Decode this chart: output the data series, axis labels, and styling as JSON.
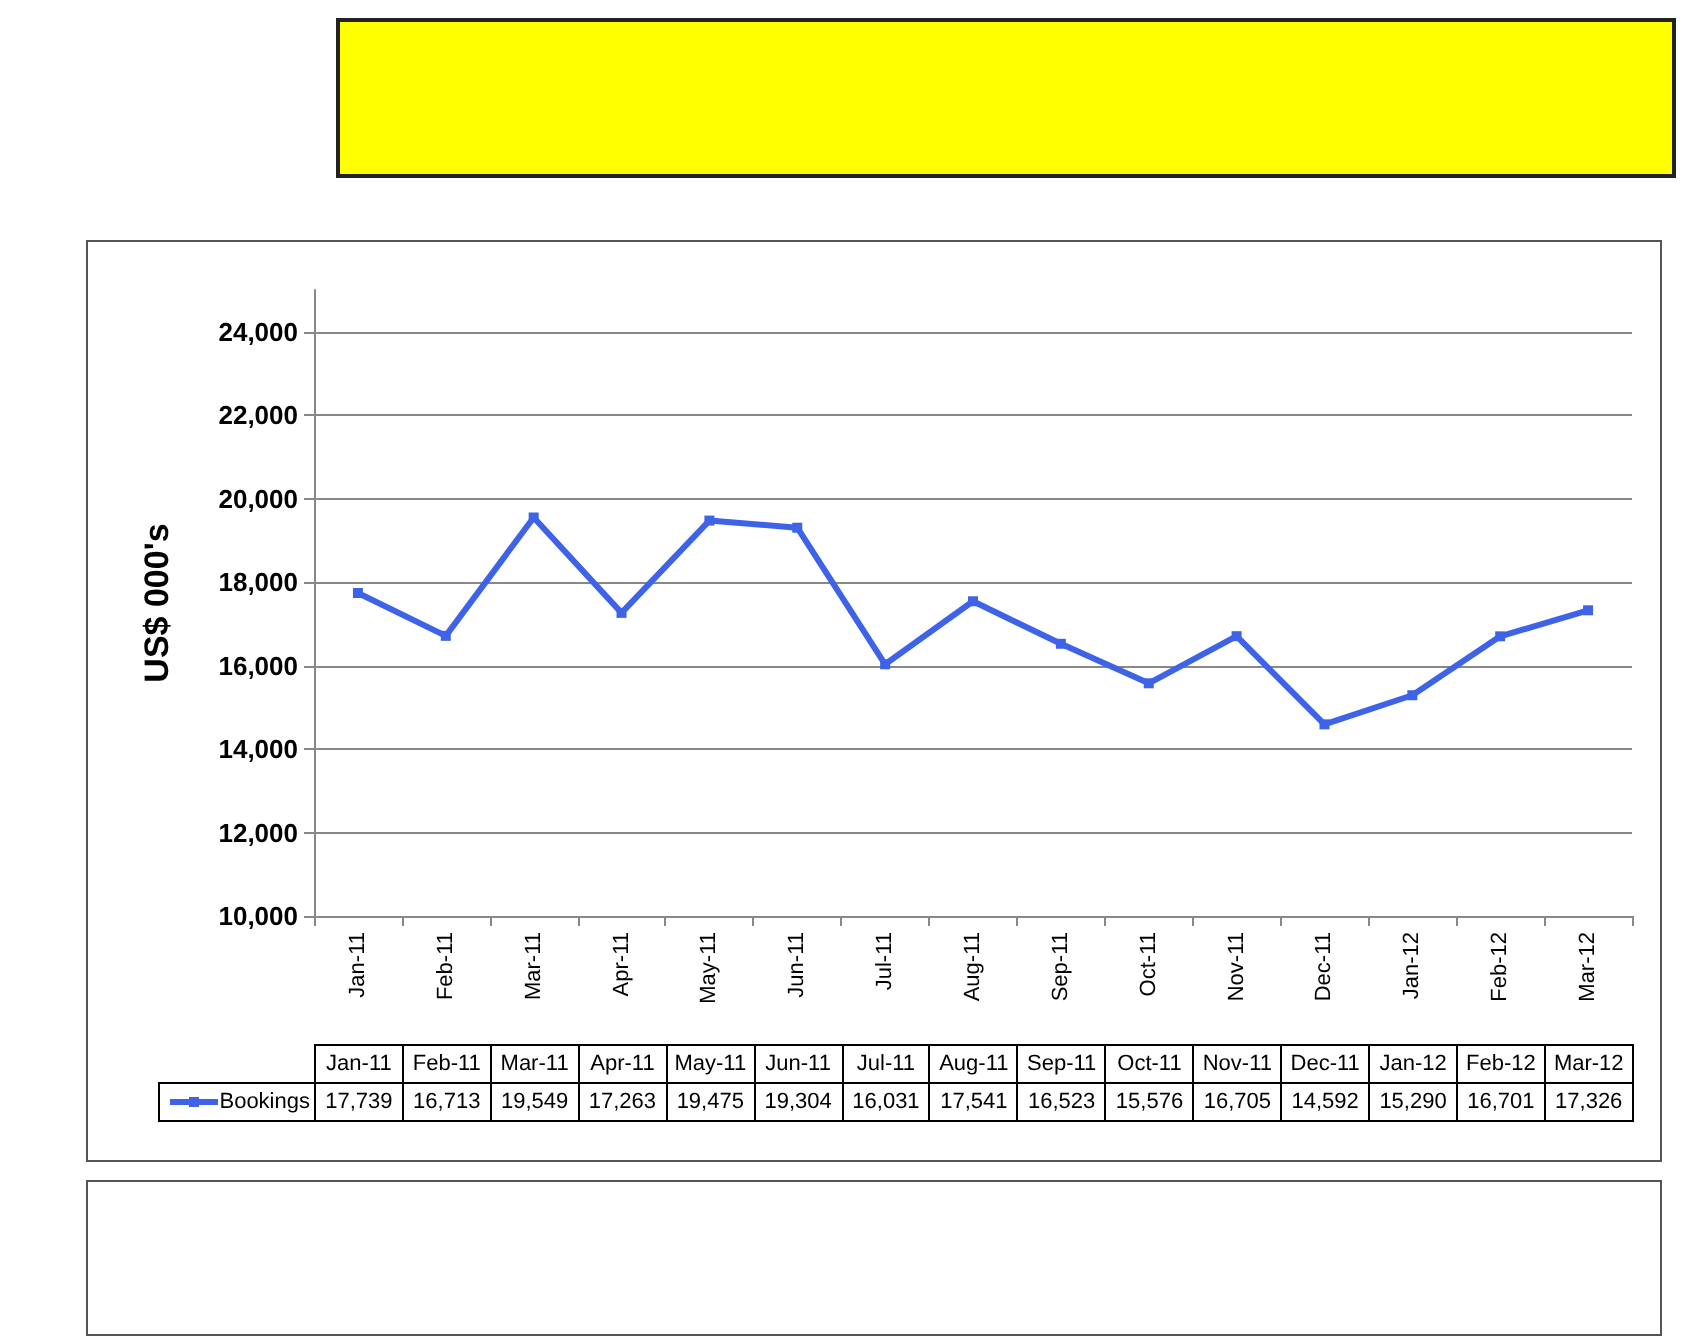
{
  "chart_data": {
    "type": "line",
    "ylabel": "US$ 000's",
    "categories": [
      "Jan-11",
      "Feb-11",
      "Mar-11",
      "Apr-11",
      "May-11",
      "Jun-11",
      "Jul-11",
      "Aug-11",
      "Sep-11",
      "Oct-11",
      "Nov-11",
      "Dec-11",
      "Jan-12",
      "Feb-12",
      "Mar-12"
    ],
    "series": [
      {
        "name": "Bookings",
        "color": "#3f63e8",
        "values": [
          17739,
          16713,
          19549,
          17263,
          19475,
          19304,
          16031,
          17541,
          16523,
          15576,
          16705,
          14592,
          15290,
          16701,
          17326
        ],
        "value_labels": [
          "17,739",
          "16,713",
          "19,549",
          "17,263",
          "19,475",
          "19,304",
          "16,031",
          "17,541",
          "16,523",
          "15,576",
          "16,705",
          "14,592",
          "15,290",
          "16,701",
          "17,326"
        ]
      }
    ],
    "ylim": [
      10000,
      25000
    ],
    "yticks": [
      {
        "value": 10000,
        "label": "10,000"
      },
      {
        "value": 12000,
        "label": "12,000"
      },
      {
        "value": 14000,
        "label": "14,000"
      },
      {
        "value": 16000,
        "label": "16,000"
      },
      {
        "value": 18000,
        "label": "18,000"
      },
      {
        "value": 20000,
        "label": "20,000"
      },
      {
        "value": 22000,
        "label": "22,000"
      },
      {
        "value": 24000,
        "label": "24,000"
      }
    ],
    "grid": "y",
    "legend": "bottom",
    "marker": "square",
    "line_style": "solid"
  }
}
